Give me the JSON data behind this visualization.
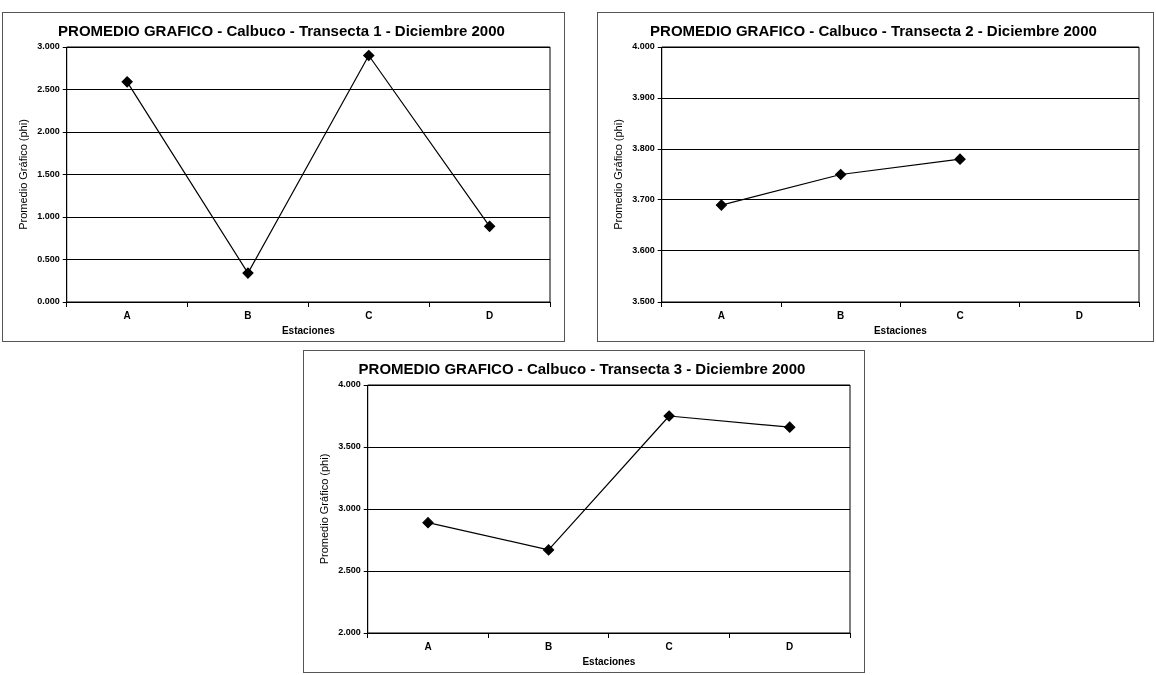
{
  "chart_data": [
    {
      "type": "line",
      "title": "PROMEDIO GRAFICO - Calbuco - Transecta 1 - Diciembre 2000",
      "xlabel": "Estaciones",
      "ylabel": "Promedio Gráfico (phi)",
      "categories": [
        "A",
        "B",
        "C",
        "D"
      ],
      "series": [
        {
          "color": "#000000",
          "values": [
            2.59,
            0.34,
            2.9,
            0.89
          ]
        }
      ],
      "ylim": [
        0,
        3
      ],
      "yticks": [
        {
          "value": 0,
          "label": "0.000"
        },
        {
          "value": 0.5,
          "label": "0.500"
        },
        {
          "value": 1,
          "label": "1.000"
        },
        {
          "value": 1.5,
          "label": "1.500"
        },
        {
          "value": 2,
          "label": "2.000"
        },
        {
          "value": 2.5,
          "label": "2.500"
        },
        {
          "value": 3,
          "label": "3.000"
        }
      ],
      "grid": "y",
      "legend": false,
      "marker": "diamond",
      "line_style": "solid"
    },
    {
      "type": "line",
      "title": "PROMEDIO GRAFICO - Calbuco - Transecta 2 - Diciembre 2000",
      "xlabel": "Estaciones",
      "ylabel": "Promedio Gráfico (phi)",
      "categories": [
        "A",
        "B",
        "C",
        "D"
      ],
      "series": [
        {
          "color": "#000000",
          "values": [
            3.69,
            3.75,
            3.78,
            null
          ]
        }
      ],
      "ylim": [
        3.5,
        4
      ],
      "yticks": [
        {
          "value": 3.5,
          "label": "3.500"
        },
        {
          "value": 3.6,
          "label": "3.600"
        },
        {
          "value": 3.7,
          "label": "3.700"
        },
        {
          "value": 3.8,
          "label": "3.800"
        },
        {
          "value": 3.9,
          "label": "3.900"
        },
        {
          "value": 4,
          "label": "4.000"
        }
      ],
      "grid": "y",
      "legend": false,
      "marker": "diamond",
      "line_style": "solid"
    },
    {
      "type": "line",
      "title": "PROMEDIO GRAFICO - Calbuco - Transecta 3 - Diciembre 2000",
      "xlabel": "Estaciones",
      "ylabel": "Promedio Gráfico (phi)",
      "categories": [
        "A",
        "B",
        "C",
        "D"
      ],
      "series": [
        {
          "color": "#000000",
          "values": [
            2.89,
            2.67,
            3.75,
            3.66
          ]
        }
      ],
      "ylim": [
        2,
        4
      ],
      "yticks": [
        {
          "value": 2,
          "label": "2.000"
        },
        {
          "value": 2.5,
          "label": "2.500"
        },
        {
          "value": 3,
          "label": "3.000"
        },
        {
          "value": 3.5,
          "label": "3.500"
        },
        {
          "value": 4,
          "label": "4.000"
        }
      ],
      "grid": "y",
      "legend": false,
      "marker": "diamond",
      "line_style": "solid"
    }
  ]
}
